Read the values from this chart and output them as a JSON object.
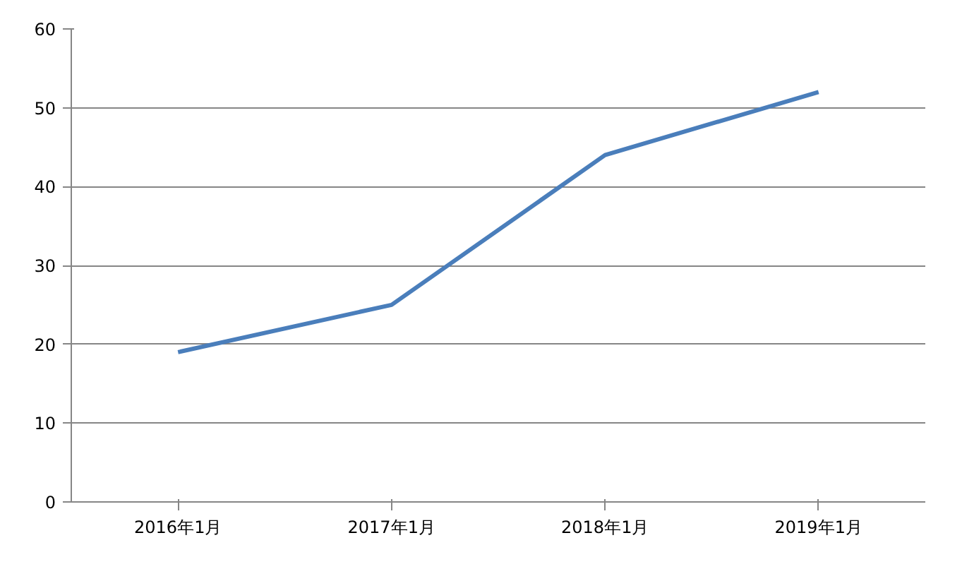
{
  "chart_data": {
    "type": "line",
    "categories": [
      "2016年1月",
      "2017年1月",
      "2018年1月",
      "2019年1月"
    ],
    "series": [
      {
        "color": "#4a7ebb",
        "values": [
          19,
          25,
          44,
          52
        ]
      }
    ],
    "ylim": [
      0,
      60
    ],
    "yticks": [
      0,
      10,
      20,
      30,
      40,
      50,
      60
    ],
    "grid": "y",
    "marker": "none",
    "line_style": "solid"
  }
}
